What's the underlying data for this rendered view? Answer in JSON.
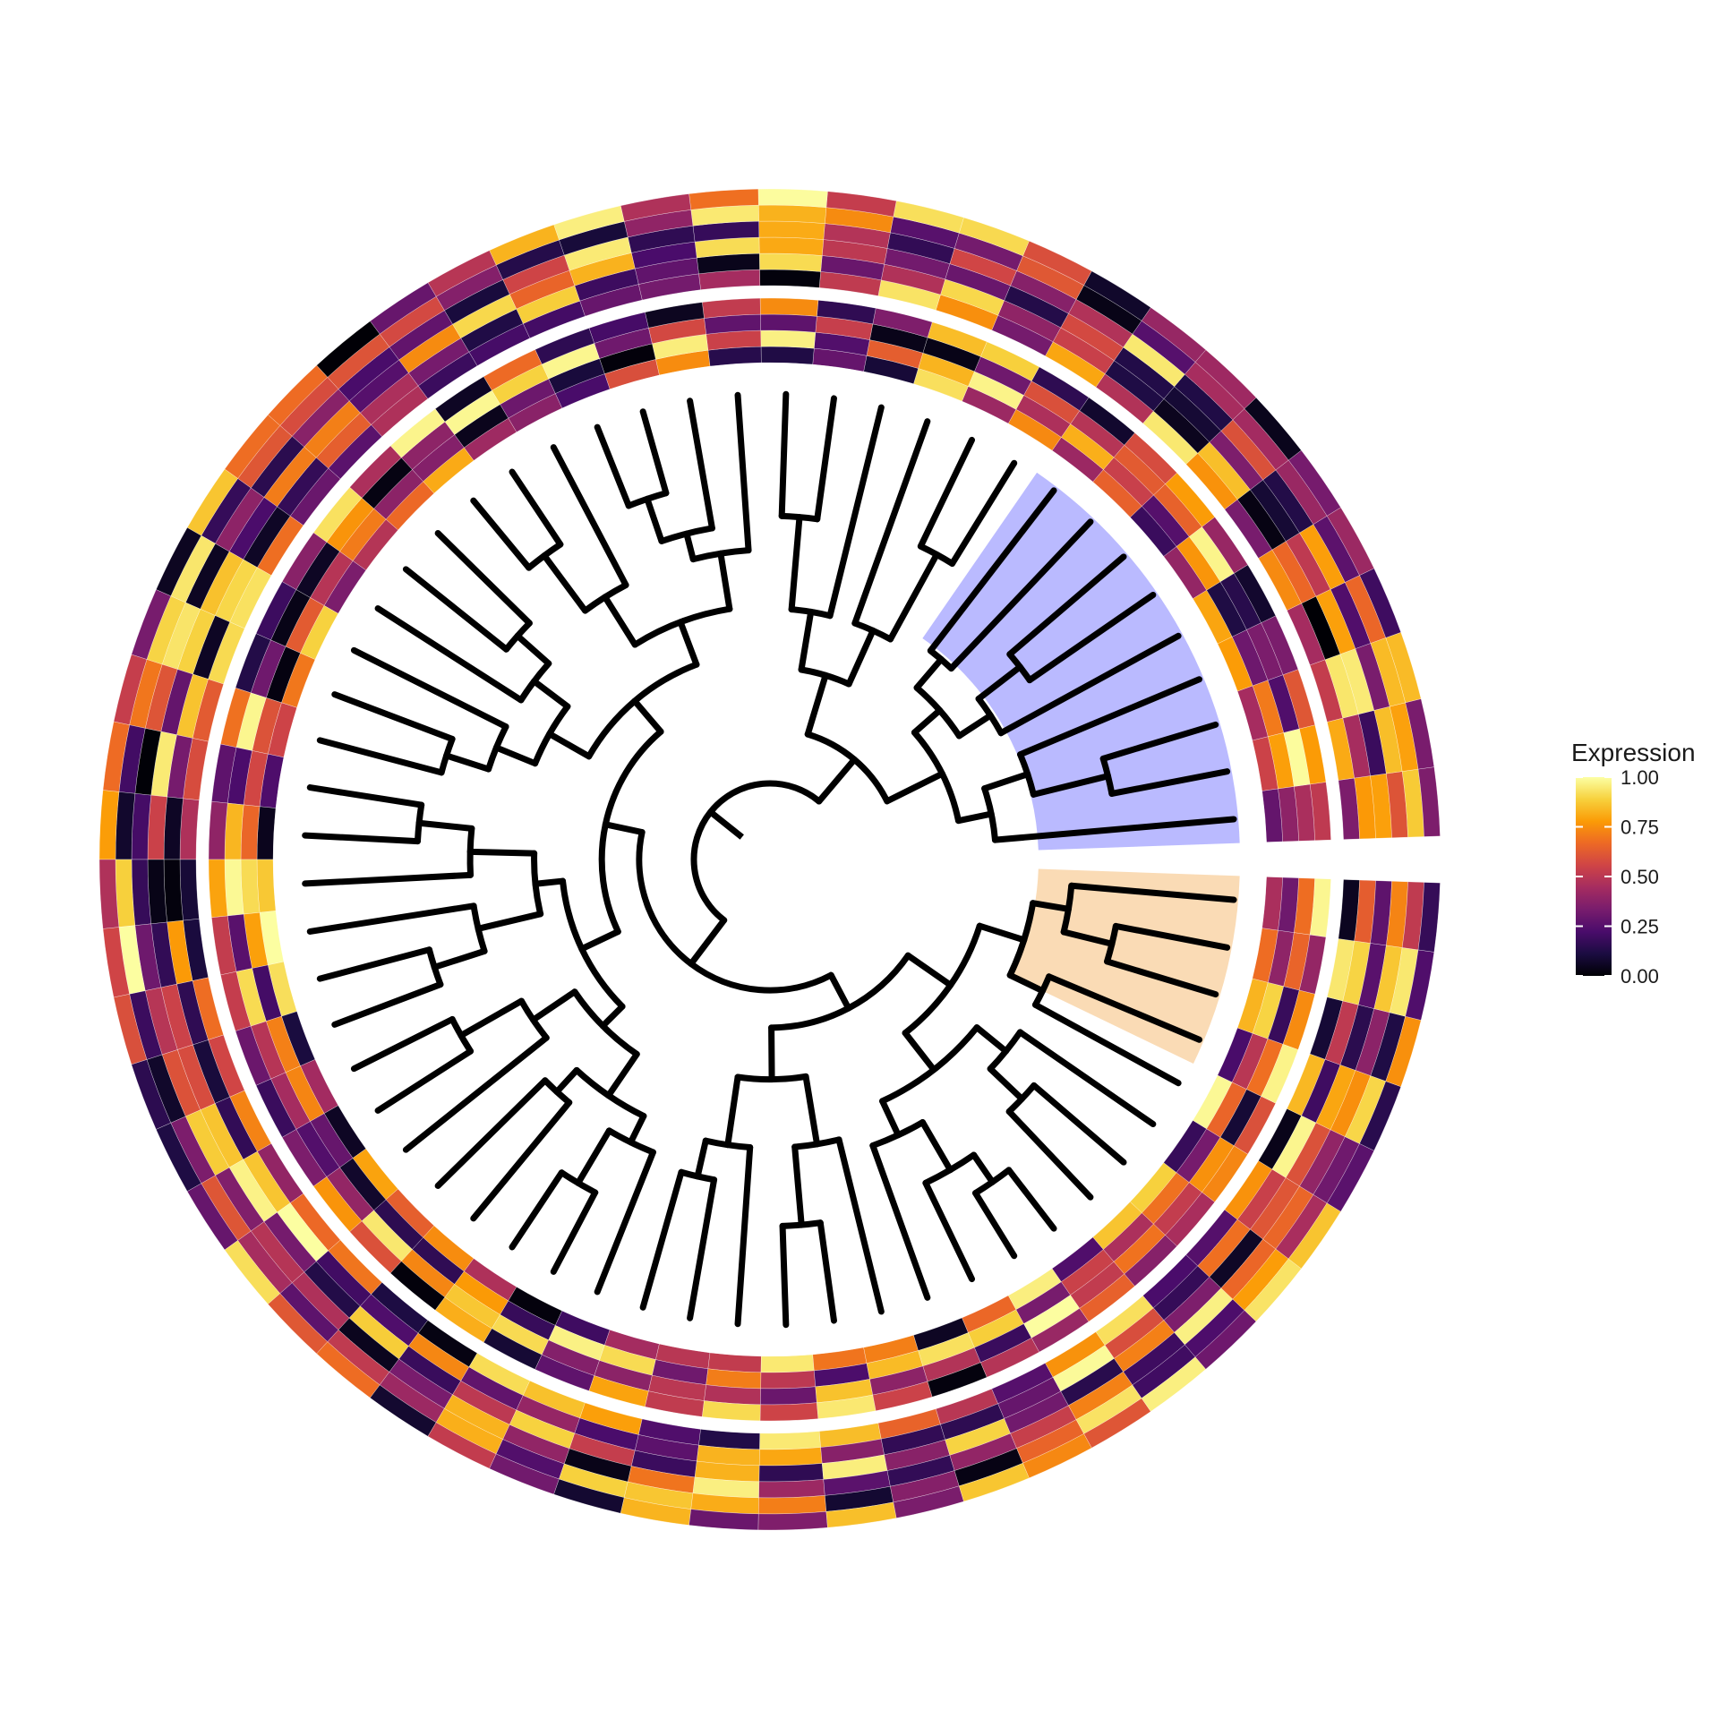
{
  "chart_data": {
    "type": "heatmap",
    "subtype": "circular phylogenetic tree with heatmap rings",
    "title": "",
    "tree": {
      "tips": 60,
      "highlighted_clades": [
        {
          "name": "",
          "tip_range": [
            1,
            9
          ],
          "color": "#b3b3ff"
        },
        {
          "name": "",
          "tip_range": [
            57,
            60
          ],
          "color": "#fad7ad"
        }
      ]
    },
    "heatmap_rings": [
      {
        "name": "",
        "columns": 4
      },
      {
        "name": "",
        "columns": 6
      }
    ],
    "legend": {
      "title": "Expression",
      "palette": "inferno",
      "colors": [
        "#000004",
        "#1b0c41",
        "#4a0c6b",
        "#781c6d",
        "#a52c60",
        "#cf4446",
        "#ed6925",
        "#fb9b06",
        "#f7d13d",
        "#fcffa4"
      ],
      "breaks": [
        0.0,
        0.25,
        0.5,
        0.75,
        1.0
      ],
      "tick_labels": [
        "0.00",
        "0.25",
        "0.50",
        "0.75",
        "1.00"
      ],
      "min": 0.0,
      "max": 1.0,
      "position": "right"
    },
    "grid": false
  }
}
